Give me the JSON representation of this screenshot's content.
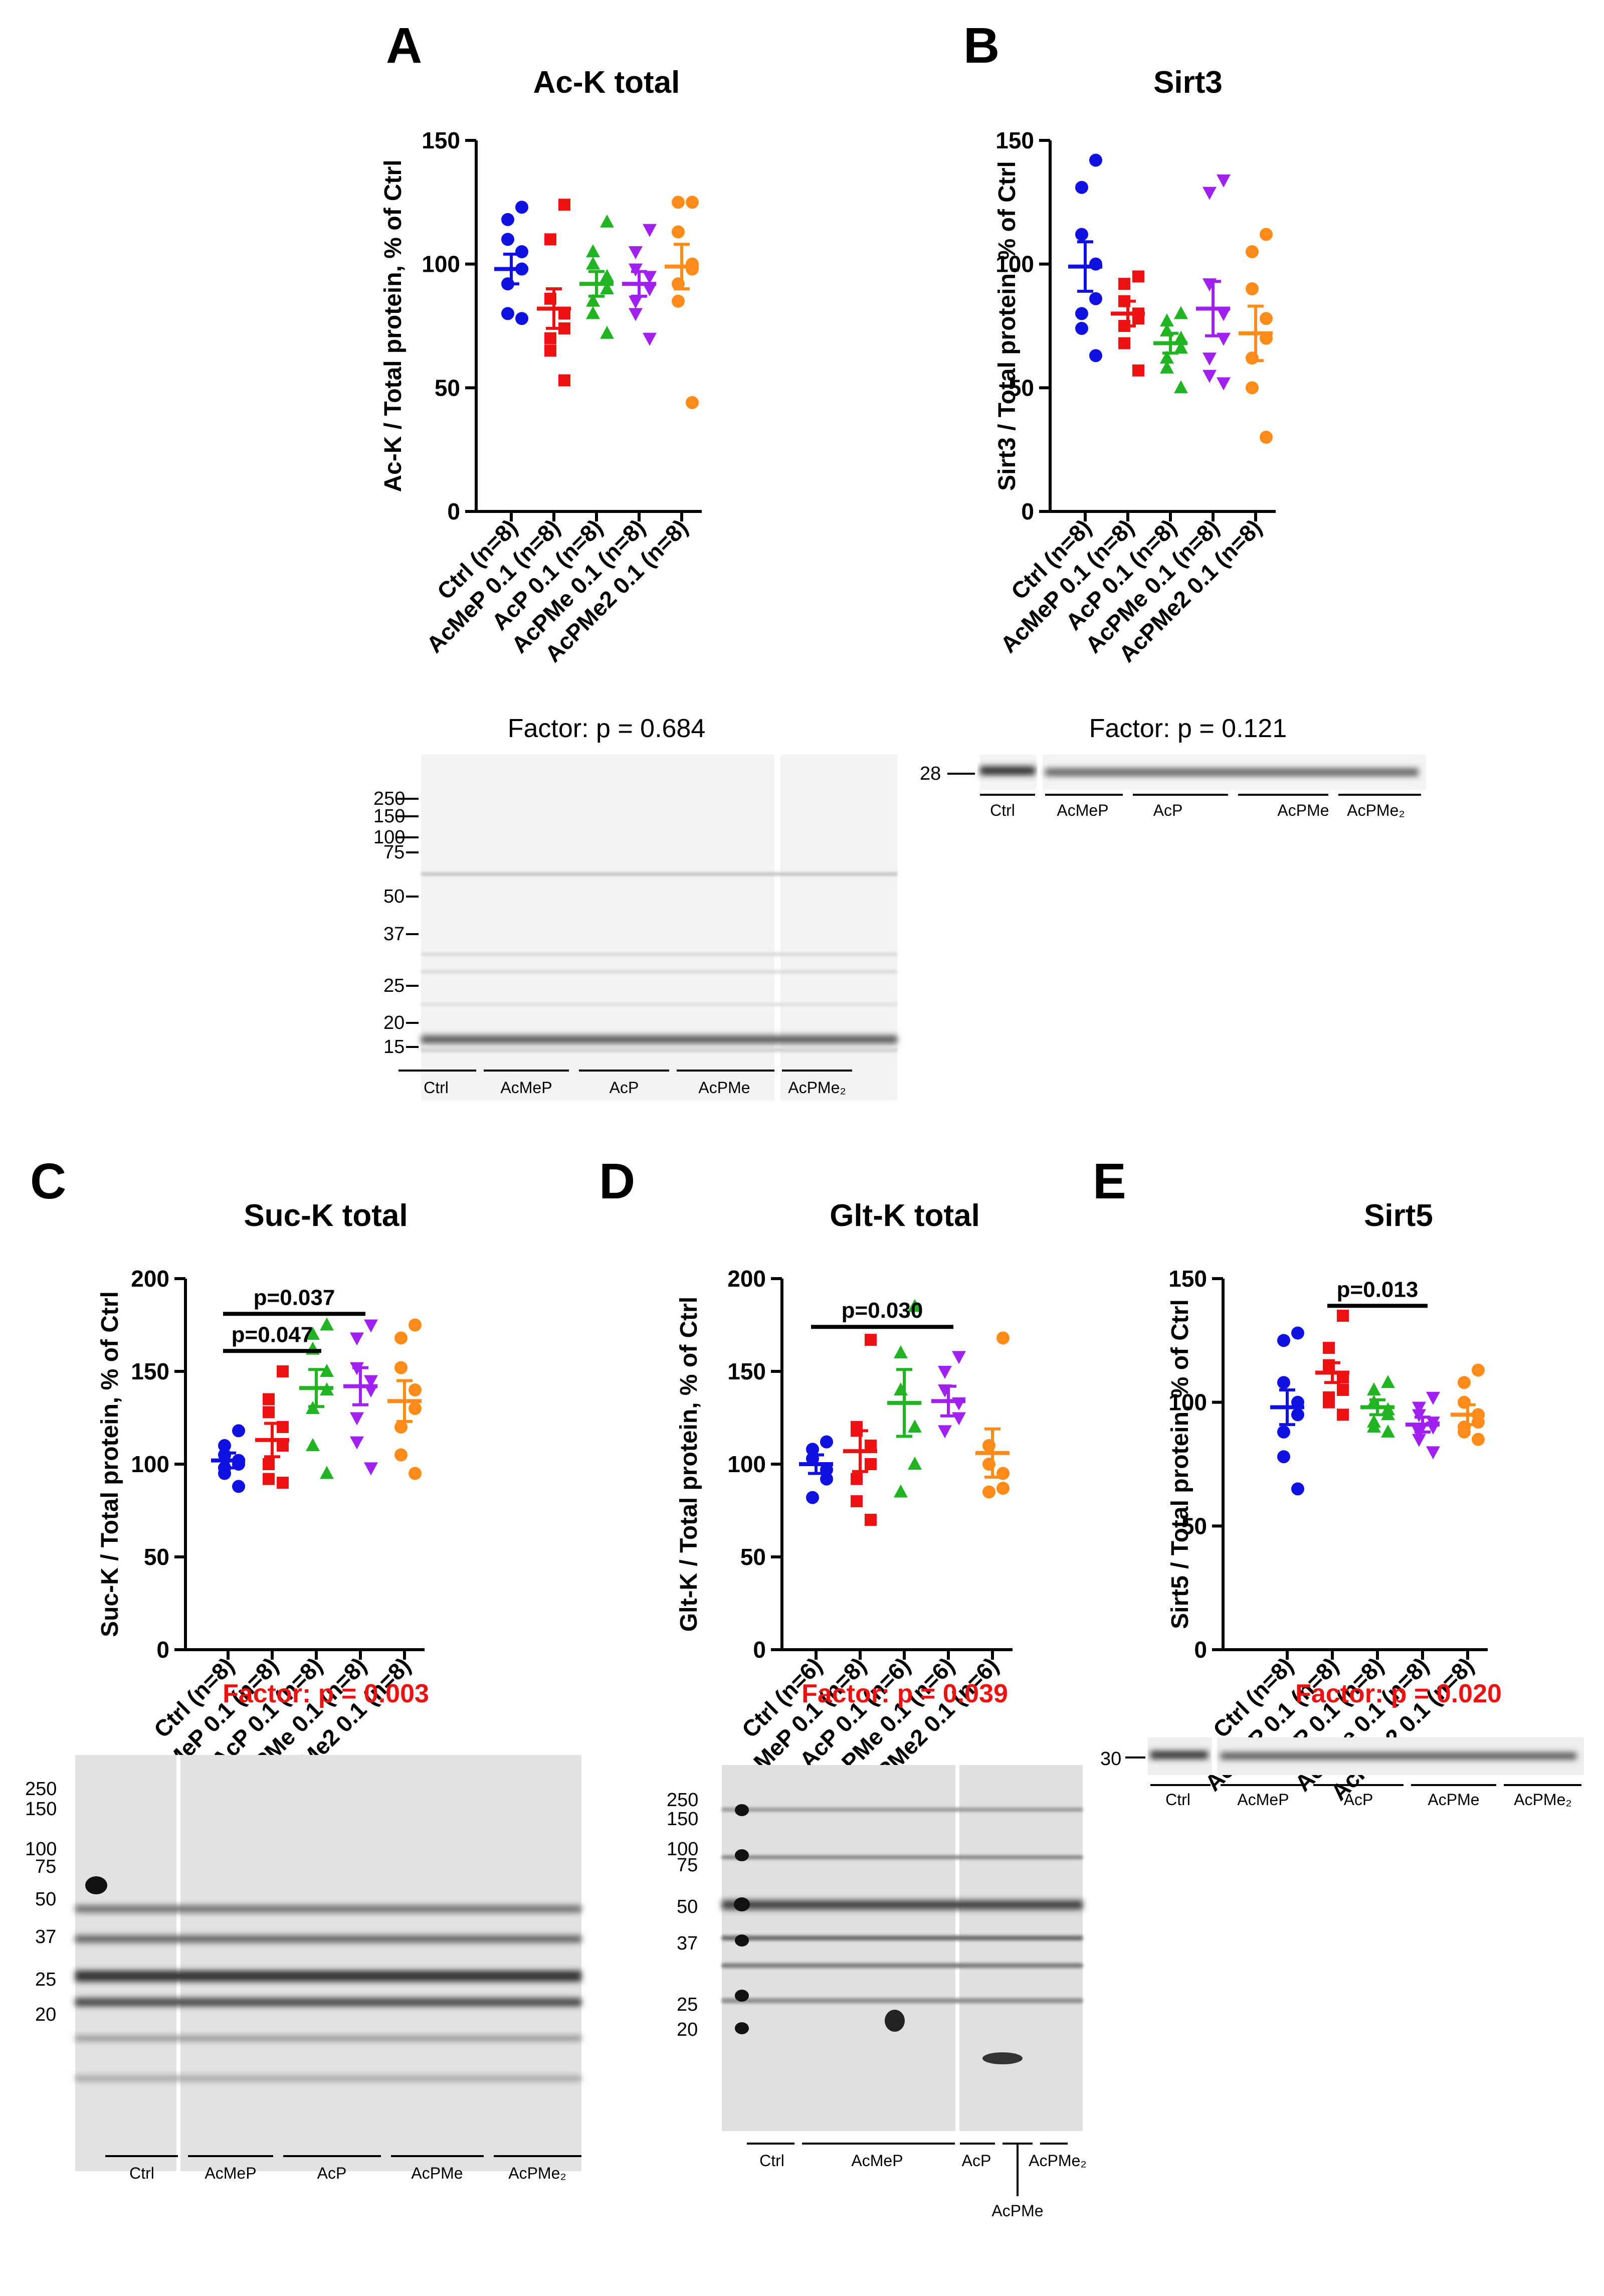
{
  "colors": {
    "Ctrl": "#1010e0",
    "AcMeP": "#ee1111",
    "AcP": "#22b322",
    "AcPMe": "#a020f0",
    "AcPMe2": "#ff8c1a",
    "sig": "#ee1111",
    "ns": "#000000"
  },
  "chart_data": [
    {
      "id": "A",
      "type": "scatter",
      "title": "Ac-K total",
      "ylabel": "Ac-K / Total protein, % of Ctrl",
      "ylim": [
        0,
        150
      ],
      "yticks": [
        0,
        50,
        100,
        150
      ],
      "categories": [
        "Ctrl (n=8)",
        "AcMeP 0.1 (n=8)",
        "AcP 0.1 (n=8)",
        "AcPMe 0.1 (n=8)",
        "AcPMe2 0.1 (n=8)"
      ],
      "groups": [
        "Ctrl",
        "AcMeP",
        "AcP",
        "AcPMe",
        "AcPMe2"
      ],
      "means": [
        98,
        82,
        92,
        92,
        99
      ],
      "sems": [
        6,
        8,
        5,
        5,
        9
      ],
      "points": [
        [
          123,
          118,
          110,
          105,
          98,
          92,
          80,
          78
        ],
        [
          124,
          110,
          86,
          80,
          74,
          70,
          65,
          53
        ],
        [
          117,
          105,
          100,
          95,
          90,
          85,
          80,
          72
        ],
        [
          114,
          105,
          98,
          95,
          90,
          85,
          80,
          70
        ],
        [
          125,
          125,
          113,
          100,
          98,
          92,
          85,
          44
        ]
      ],
      "comparisons": [],
      "factor": "Factor: p = 0.684",
      "factor_significant": false
    },
    {
      "id": "B",
      "type": "scatter",
      "title": "Sirt3",
      "ylabel": "Sirt3 / Total protein, % of Ctrl",
      "ylim": [
        0,
        150
      ],
      "yticks": [
        0,
        50,
        100,
        150
      ],
      "categories": [
        "Ctrl (n=8)",
        "AcMeP 0.1 (n=8)",
        "AcP 0.1 (n=8)",
        "AcPMe 0.1 (n=8)",
        "AcPMe2 0.1 (n=8)"
      ],
      "groups": [
        "Ctrl",
        "AcMeP",
        "AcP",
        "AcPMe",
        "AcPMe2"
      ],
      "means": [
        99,
        80,
        68,
        82,
        72
      ],
      "sems": [
        10,
        5,
        4,
        11,
        11
      ],
      "points": [
        [
          142,
          131,
          112,
          100,
          86,
          80,
          74,
          63
        ],
        [
          95,
          92,
          85,
          80,
          78,
          75,
          68,
          57
        ],
        [
          80,
          77,
          73,
          70,
          66,
          62,
          58,
          50
        ],
        [
          134,
          129,
          92,
          80,
          70,
          62,
          55,
          52
        ],
        [
          112,
          105,
          90,
          78,
          70,
          62,
          50,
          30
        ]
      ],
      "comparisons": [],
      "factor": "Factor: p = 0.121",
      "factor_significant": false
    },
    {
      "id": "C",
      "type": "scatter",
      "title": "Suc-K total",
      "ylabel": "Suc-K / Total protein, % of Ctrl",
      "ylim": [
        0,
        200
      ],
      "yticks": [
        0,
        50,
        100,
        150,
        200
      ],
      "categories": [
        "Ctrl (n=8)",
        "AcMeP 0.1 (n=8)",
        "AcP 0.1 (n=8)",
        "AcPMe 0.1 (n=8)",
        "AcPMe2 0.1 (n=8)"
      ],
      "groups": [
        "Ctrl",
        "AcMeP",
        "AcP",
        "AcPMe",
        "AcPMe2"
      ],
      "means": [
        102,
        113,
        141,
        142,
        134
      ],
      "sems": [
        4,
        9,
        10,
        10,
        11
      ],
      "points": [
        [
          118,
          110,
          105,
          102,
          100,
          98,
          95,
          88
        ],
        [
          150,
          135,
          128,
          120,
          110,
          100,
          92,
          90
        ],
        [
          175,
          170,
          162,
          150,
          140,
          130,
          110,
          95
        ],
        [
          175,
          168,
          152,
          145,
          140,
          125,
          112,
          98
        ],
        [
          175,
          168,
          152,
          140,
          130,
          120,
          105,
          95
        ]
      ],
      "comparisons": [
        {
          "from": 0,
          "to": 3,
          "label": "p=0.037",
          "y": 181
        },
        {
          "from": 0,
          "to": 2,
          "label": "p=0.047",
          "y": 161
        }
      ],
      "factor": "Factor: p = 0.003",
      "factor_significant": true
    },
    {
      "id": "D",
      "type": "scatter",
      "title": "Glt-K total",
      "ylabel": "Glt-K / Total protein, % of Ctrl",
      "ylim": [
        0,
        200
      ],
      "yticks": [
        0,
        50,
        100,
        150,
        200
      ],
      "categories": [
        "Ctrl (n=6)",
        "AcMeP 0.1 (n=8)",
        "AcP 0.1 (n=6)",
        "AcPMe 0.1 (n=6)",
        "AcPMe2 0.1 (n=6)"
      ],
      "groups": [
        "Ctrl",
        "AcMeP",
        "AcP",
        "AcPMe",
        "AcPMe2"
      ],
      "means": [
        100,
        107,
        133,
        134,
        106
      ],
      "sems": [
        5,
        11,
        18,
        8,
        13
      ],
      "points": [
        [
          112,
          108,
          103,
          97,
          92,
          82
        ],
        [
          167,
          120,
          118,
          110,
          100,
          92,
          80,
          70
        ],
        [
          185,
          160,
          140,
          120,
          100,
          85
        ],
        [
          158,
          150,
          140,
          133,
          125,
          118
        ],
        [
          168,
          110,
          100,
          95,
          87,
          85
        ]
      ],
      "comparisons": [
        {
          "from": 0,
          "to": 3,
          "label": "p=0.030",
          "y": 174
        }
      ],
      "factor": "Factor: p = 0.039",
      "factor_significant": true
    },
    {
      "id": "E",
      "type": "scatter",
      "title": "Sirt5",
      "ylabel": "Sirt5 / Total protein, % of Ctrl",
      "ylim": [
        0,
        150
      ],
      "yticks": [
        0,
        50,
        100,
        150
      ],
      "categories": [
        "Ctrl (n=8)",
        "AcMeP 0.1 (n=8)",
        "AcP 0.1 (n=8)",
        "AcPMe 0.1 (n=8)",
        "AcPMe2 0.1 (n=8)"
      ],
      "groups": [
        "Ctrl",
        "AcMeP",
        "AcP",
        "AcPMe",
        "AcPMe2"
      ],
      "means": [
        98,
        112,
        98,
        91,
        95
      ],
      "sems": [
        7,
        4,
        3,
        3,
        4
      ],
      "points": [
        [
          128,
          125,
          108,
          100,
          95,
          88,
          78,
          65
        ],
        [
          135,
          122,
          115,
          110,
          105,
          102,
          100,
          95
        ],
        [
          108,
          105,
          100,
          97,
          95,
          92,
          90,
          88
        ],
        [
          102,
          98,
          95,
          92,
          90,
          88,
          85,
          80
        ],
        [
          113,
          108,
          100,
          95,
          92,
          90,
          88,
          85
        ]
      ],
      "comparisons": [
        {
          "from": 1,
          "to": 3,
          "label": "p=0.013",
          "y": 139
        }
      ],
      "factor": "Factor: p = 0.020",
      "factor_significant": true
    }
  ],
  "blots": {
    "A": {
      "mw": [
        "250",
        "150",
        "100",
        "75",
        "50",
        "37",
        "25",
        "20",
        "15"
      ],
      "lanes": [
        "Ctrl",
        "AcMeP",
        "AcP",
        "AcPMe",
        "AcPMe₂"
      ]
    },
    "B": {
      "mw": [
        "28"
      ],
      "lanes": [
        "Ctrl",
        "AcMeP",
        "AcP",
        "AcPMe",
        "AcPMe₂"
      ]
    },
    "C": {
      "mw": [
        "250",
        "150",
        "100",
        "75",
        "50",
        "37",
        "25",
        "20"
      ],
      "lanes": [
        "Ctrl",
        "AcMeP",
        "AcP",
        "AcPMe",
        "AcPMe₂"
      ]
    },
    "D": {
      "mw": [
        "250",
        "150",
        "100",
        "75",
        "50",
        "37",
        "25",
        "20"
      ],
      "lanes": [
        "Ctrl",
        "AcMeP",
        "AcP",
        "AcPMe₂",
        "AcPMe"
      ]
    },
    "E": {
      "mw": [
        "30"
      ],
      "lanes": [
        "Ctrl",
        "AcMeP",
        "AcP",
        "AcPMe",
        "AcPMe₂"
      ]
    }
  }
}
